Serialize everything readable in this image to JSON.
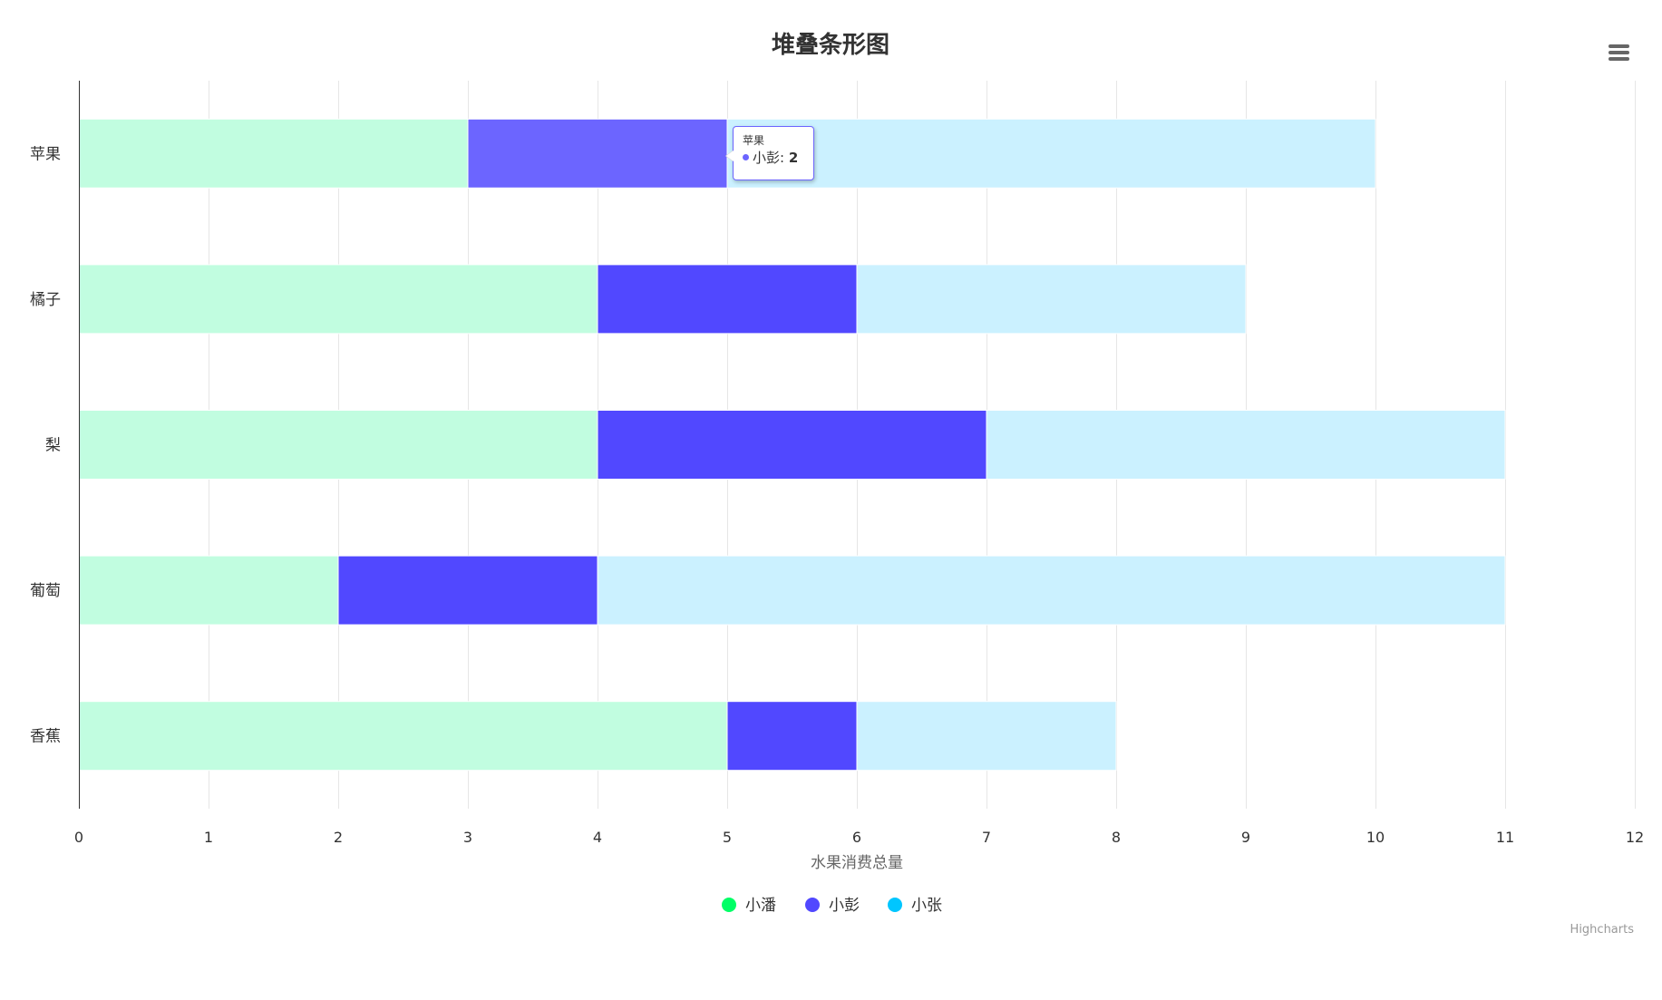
{
  "chart_data": {
    "type": "bar",
    "orientation": "horizontal",
    "stacked": true,
    "title": "堆叠条形图",
    "categories": [
      "苹果",
      "橘子",
      "梨",
      "葡萄",
      "香蕉"
    ],
    "series": [
      {
        "name": "小潘",
        "color": "#00ff66",
        "fill": "#c1fde0",
        "values": [
          3,
          4,
          4,
          2,
          5
        ]
      },
      {
        "name": "小彭",
        "color": "#5148ff",
        "fill": "#5148ff",
        "values": [
          2,
          2,
          3,
          2,
          1
        ]
      },
      {
        "name": "小张",
        "color": "#00c6ff",
        "fill": "#cbf1ff",
        "values": [
          5,
          3,
          4,
          7,
          2
        ]
      }
    ],
    "xlabel": "水果消费总量",
    "ylabel": "",
    "xlim": [
      0,
      12
    ],
    "x_ticks": [
      "0",
      "1",
      "2",
      "3",
      "4",
      "5",
      "6",
      "7",
      "8",
      "9",
      "10",
      "11",
      "12"
    ],
    "grid": true,
    "legend_position": "bottom-center",
    "highlight": {
      "category_index": 0,
      "series_index": 1,
      "fill": "#6c65ff"
    }
  },
  "tooltip": {
    "header": "苹果",
    "series_name": "小彭",
    "value": "2",
    "separator": ":",
    "dot_color": "#6c65ff"
  },
  "credits": "Highcharts",
  "menu": {
    "icon": "hamburger-menu-icon"
  }
}
